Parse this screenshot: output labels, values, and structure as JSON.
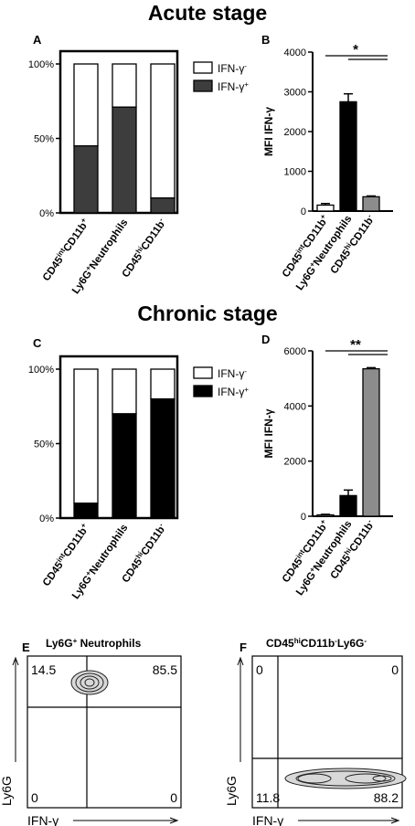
{
  "titles": {
    "acute": "Acute stage",
    "chronic": "Chronic stage"
  },
  "panel_letters": [
    "A",
    "B",
    "C",
    "D",
    "E",
    "F"
  ],
  "colors": {
    "acute_pos": "#3d3d3d",
    "chronic_pos": "#000000",
    "neg": "#ffffff",
    "grey_bar": "#8c8c8c"
  },
  "chart_data": [
    {
      "id": "A",
      "type": "bar",
      "stacked": true,
      "categories": [
        "CD45intCD11b+",
        "Ly6G+Neutrophils",
        "CD45hiCD11b-"
      ],
      "series": [
        {
          "name": "IFN-γ+",
          "values": [
            45,
            71,
            10
          ]
        },
        {
          "name": "IFN-γ-",
          "values": [
            55,
            29,
            90
          ]
        }
      ],
      "ylim": [
        0,
        100
      ],
      "yticks": [
        "0%",
        "50%",
        "100%"
      ],
      "legend": "top-right"
    },
    {
      "id": "B",
      "type": "bar",
      "categories": [
        "CD45intCD11b+",
        "Ly6G+Neutrophils",
        "CD45hiCD11b-"
      ],
      "values": [
        150,
        2750,
        360
      ],
      "errors": [
        40,
        200,
        20
      ],
      "ylabel": "MFI IFN-γ",
      "ylim": [
        0,
        4000
      ],
      "yticks": [
        0,
        1000,
        2000,
        3000,
        4000
      ],
      "significance": "*"
    },
    {
      "id": "C",
      "type": "bar",
      "stacked": true,
      "categories": [
        "CD45intCD11b+",
        "Ly6G+Neutrophils",
        "CD45hiCD11b-"
      ],
      "series": [
        {
          "name": "IFN-γ+",
          "values": [
            10,
            70,
            80
          ]
        },
        {
          "name": "IFN-γ-",
          "values": [
            90,
            30,
            20
          ]
        }
      ],
      "ylim": [
        0,
        100
      ],
      "yticks": [
        "0%",
        "50%",
        "100%"
      ],
      "legend": "top-right"
    },
    {
      "id": "D",
      "type": "bar",
      "categories": [
        "CD45intCD11b+",
        "Ly6G+Neutrophils",
        "CD45hiCD11b-"
      ],
      "values": [
        50,
        750,
        5350
      ],
      "errors": [
        20,
        200,
        40
      ],
      "ylabel": "MFI IFN-γ",
      "ylim": [
        0,
        6000
      ],
      "yticks": [
        0,
        2000,
        4000,
        6000
      ],
      "significance": "**"
    },
    {
      "id": "E",
      "type": "scatter",
      "title": "Ly6G+ Neutrophils",
      "xlabel": "IFN-γ",
      "ylabel": "Ly6G",
      "quadrants": {
        "top_left": "14.5",
        "top_right": "85.5",
        "bottom_left": "0",
        "bottom_right": "0"
      }
    },
    {
      "id": "F",
      "type": "scatter",
      "title": "CD45hiCD11b-Ly6G-",
      "xlabel": "IFN-γ",
      "ylabel": "Ly6G",
      "quadrants": {
        "top_left": "0",
        "top_right": "0",
        "bottom_left": "11.8",
        "bottom_right": "88.2"
      }
    }
  ]
}
